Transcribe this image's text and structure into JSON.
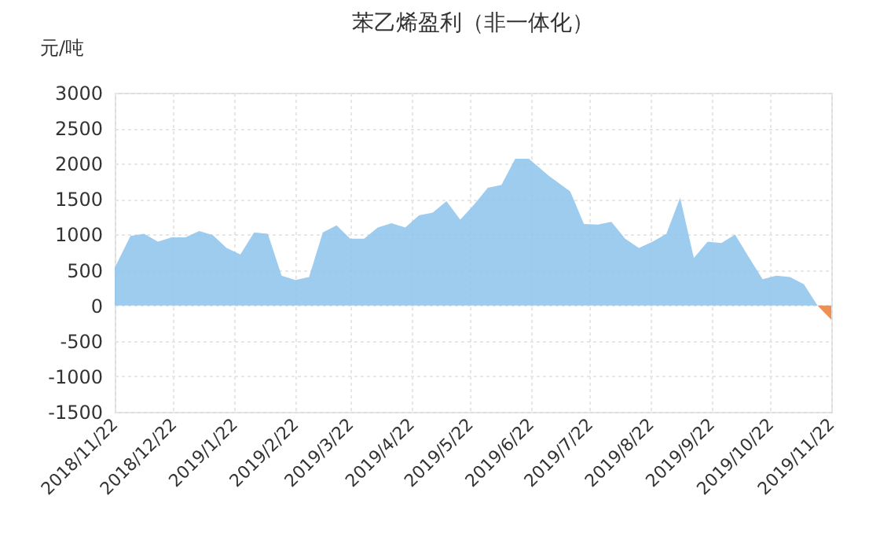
{
  "chart_data": {
    "type": "area",
    "title": "苯乙烯盈利（非一体化）",
    "ylabel": "元/吨",
    "xlim": [
      "2018-11-22",
      "2019-11-22"
    ],
    "xticks": [
      {
        "value": "2018-11-22",
        "label": "2018/11/22"
      },
      {
        "value": "2018-12-22",
        "label": "2018/12/22"
      },
      {
        "value": "2019-01-22",
        "label": "2019/1/22"
      },
      {
        "value": "2019-02-22",
        "label": "2019/2/22"
      },
      {
        "value": "2019-03-22",
        "label": "2019/3/22"
      },
      {
        "value": "2019-04-22",
        "label": "2019/4/22"
      },
      {
        "value": "2019-05-22",
        "label": "2019/5/22"
      },
      {
        "value": "2019-06-22",
        "label": "2019/6/22"
      },
      {
        "value": "2019-07-22",
        "label": "2019/7/22"
      },
      {
        "value": "2019-08-22",
        "label": "2019/8/22"
      },
      {
        "value": "2019-09-22",
        "label": "2019/9/22"
      },
      {
        "value": "2019-10-22",
        "label": "2019/10/22"
      },
      {
        "value": "2019-11-22",
        "label": "2019/11/22"
      }
    ],
    "ylim": [
      -1500,
      3000
    ],
    "yticks": [
      -1500,
      -1000,
      -500,
      0,
      500,
      1000,
      1500,
      2000,
      2500,
      3000
    ],
    "grid": true,
    "series": [
      {
        "color": "#8cc3ec",
        "x": [
          "2018-11-22",
          "2018-11-30",
          "2018-12-07",
          "2018-12-14",
          "2018-12-21",
          "2018-12-28",
          "2019-01-04",
          "2019-01-11",
          "2019-01-18",
          "2019-01-25",
          "2019-02-01",
          "2019-02-08",
          "2019-02-15",
          "2019-02-22",
          "2019-03-01",
          "2019-03-08",
          "2019-03-15",
          "2019-03-22",
          "2019-03-29",
          "2019-04-05",
          "2019-04-12",
          "2019-04-19",
          "2019-04-26",
          "2019-05-03",
          "2019-05-10",
          "2019-05-17",
          "2019-05-24",
          "2019-05-31",
          "2019-06-07",
          "2019-06-14",
          "2019-06-21",
          "2019-07-01",
          "2019-07-12",
          "2019-07-19",
          "2019-07-26",
          "2019-08-02",
          "2019-08-09",
          "2019-08-16",
          "2019-08-23",
          "2019-08-30",
          "2019-09-06",
          "2019-09-13",
          "2019-09-20",
          "2019-09-27",
          "2019-10-04",
          "2019-10-11",
          "2019-10-18",
          "2019-10-25",
          "2019-11-01",
          "2019-11-08",
          "2019-11-15"
        ],
        "values": [
          530,
          980,
          1010,
          900,
          960,
          960,
          1050,
          990,
          810,
          720,
          1030,
          1010,
          420,
          360,
          400,
          1030,
          1130,
          940,
          940,
          1100,
          1160,
          1100,
          1270,
          1310,
          1470,
          1210,
          1420,
          1660,
          1700,
          2070,
          2070,
          1830,
          1610,
          1150,
          1140,
          1180,
          940,
          810,
          900,
          1010,
          1520,
          670,
          900,
          880,
          1000,
          680,
          370,
          420,
          400,
          300,
          0
        ]
      },
      {
        "color": "#ed7d31",
        "x": [
          "2019-11-15",
          "2019-11-22"
        ],
        "values": [
          0,
          -200
        ]
      }
    ]
  }
}
